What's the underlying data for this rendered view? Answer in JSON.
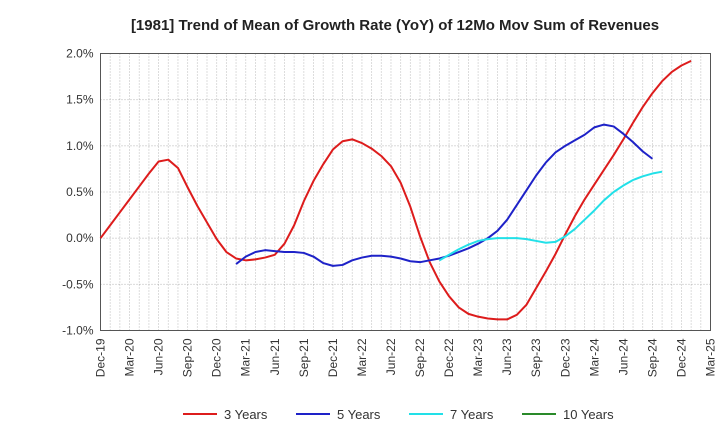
{
  "chart_data": {
    "type": "line",
    "title": "[1981]  Trend of Mean of Growth Rate (YoY) of 12Mo Mov Sum of Revenues",
    "xlabel": "",
    "ylabel": "",
    "ylim": [
      -1.0,
      2.0
    ],
    "y_ticks": [
      -1.0,
      -0.5,
      0.0,
      0.5,
      1.0,
      1.5,
      2.0
    ],
    "y_tick_labels": [
      "-1.0%",
      "-0.5%",
      "0.0%",
      "0.5%",
      "1.0%",
      "1.5%",
      "2.0%"
    ],
    "x_tick_labels": [
      "Dec-19",
      "Mar-20",
      "Jun-20",
      "Sep-20",
      "Dec-20",
      "Mar-21",
      "Jun-21",
      "Sep-21",
      "Dec-21",
      "Mar-22",
      "Jun-22",
      "Sep-22",
      "Dec-22",
      "Mar-23",
      "Jun-23",
      "Sep-23",
      "Dec-23",
      "Mar-24",
      "Jun-24",
      "Sep-24",
      "Dec-24",
      "Mar-25"
    ],
    "grid": true,
    "legend_position": "bottom",
    "series": [
      {
        "name": "3 Years",
        "color": "#dd1c1c",
        "start_index": 0,
        "values": [
          0.0,
          0.14,
          0.28,
          0.42,
          0.56,
          0.7,
          0.83,
          0.85,
          0.76,
          0.55,
          0.35,
          0.17,
          -0.01,
          -0.15,
          -0.22,
          -0.24,
          -0.23,
          -0.21,
          -0.18,
          -0.06,
          0.14,
          0.4,
          0.62,
          0.8,
          0.96,
          1.05,
          1.07,
          1.03,
          0.97,
          0.89,
          0.78,
          0.6,
          0.34,
          0.02,
          -0.26,
          -0.47,
          -0.63,
          -0.75,
          -0.82,
          -0.85,
          -0.87,
          -0.88,
          -0.88,
          -0.83,
          -0.72,
          -0.54,
          -0.36,
          -0.17,
          0.04,
          0.24,
          0.42,
          0.58,
          0.74,
          0.9,
          1.07,
          1.25,
          1.42,
          1.57,
          1.7,
          1.8,
          1.87,
          1.92
        ]
      },
      {
        "name": "5 Years",
        "color": "#1e22c8",
        "start_index": 14,
        "values": [
          -0.28,
          -0.2,
          -0.15,
          -0.13,
          -0.14,
          -0.15,
          -0.15,
          -0.16,
          -0.2,
          -0.27,
          -0.3,
          -0.29,
          -0.24,
          -0.21,
          -0.19,
          -0.19,
          -0.2,
          -0.22,
          -0.25,
          -0.26,
          -0.24,
          -0.22,
          -0.19,
          -0.15,
          -0.11,
          -0.06,
          0.0,
          0.08,
          0.2,
          0.36,
          0.52,
          0.68,
          0.82,
          0.93,
          1.0,
          1.06,
          1.12,
          1.2,
          1.23,
          1.21,
          1.13,
          1.04,
          0.94,
          0.86
        ]
      },
      {
        "name": "7 Years",
        "color": "#22e0e8",
        "start_index": 35,
        "values": [
          -0.24,
          -0.18,
          -0.12,
          -0.07,
          -0.03,
          -0.01,
          0.0,
          0.0,
          0.0,
          -0.01,
          -0.03,
          -0.05,
          -0.04,
          0.02,
          0.1,
          0.2,
          0.3,
          0.41,
          0.5,
          0.57,
          0.63,
          0.67,
          0.7,
          0.72
        ]
      },
      {
        "name": "10 Years",
        "color": "#2a8a2a",
        "start_index": 0,
        "values": []
      }
    ]
  }
}
